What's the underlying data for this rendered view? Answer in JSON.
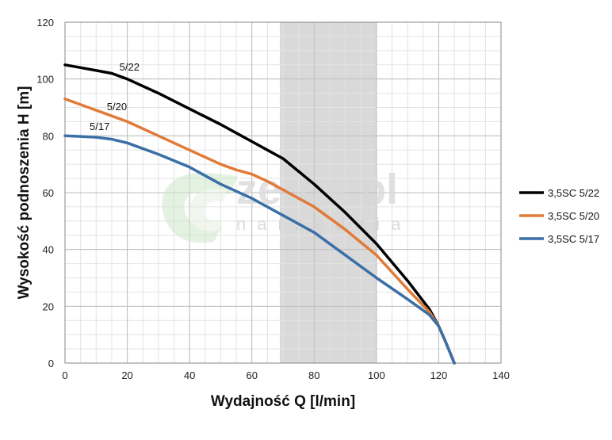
{
  "chart_data": {
    "type": "line",
    "xlabel": "Wydajność Q [l/min]",
    "ylabel": "Wysokość podnoszenia H [m]",
    "xlim": [
      0,
      140
    ],
    "ylim": [
      0,
      120
    ],
    "xticks": [
      0,
      20,
      40,
      60,
      80,
      100,
      120,
      140
    ],
    "yticks": [
      0,
      20,
      40,
      60,
      80,
      100,
      120
    ],
    "minor_x_step": 5,
    "minor_y_step": 5,
    "grid": true,
    "legend_position": "right",
    "shaded_x_range": [
      69,
      100
    ],
    "shaded_color": "#d9d9d9",
    "series": [
      {
        "name": "3,5SC 5/22",
        "label": "5/22",
        "color": "#000000",
        "x": [
          0,
          5,
          10,
          15,
          20,
          30,
          40,
          50,
          55,
          60,
          65,
          70,
          75,
          80,
          90,
          100,
          110,
          117,
          120,
          122,
          125
        ],
        "y": [
          105,
          104,
          103,
          102,
          100,
          95,
          89.5,
          84,
          81,
          78,
          75,
          72,
          67.5,
          63,
          53,
          42,
          29,
          19,
          13,
          8,
          0
        ]
      },
      {
        "name": "3,5SC 5/20",
        "label": "5/20",
        "color": "#e07b39",
        "x": [
          0,
          5,
          10,
          20,
          30,
          40,
          50,
          55,
          60,
          65,
          70,
          80,
          90,
          100,
          110,
          117,
          120,
          122,
          125
        ],
        "y": [
          93,
          91,
          89,
          85,
          80,
          75,
          70,
          68,
          66.5,
          64,
          61,
          55,
          47,
          38,
          26,
          18,
          13,
          8,
          0
        ]
      },
      {
        "name": "3,5SC 5/17",
        "label": "5/17",
        "color": "#3a6fa8",
        "x": [
          0,
          5,
          10,
          15,
          20,
          30,
          40,
          50,
          60,
          70,
          80,
          90,
          100,
          110,
          117,
          120,
          122,
          125
        ],
        "y": [
          80,
          79.8,
          79.5,
          78.8,
          77.5,
          73.5,
          69,
          63,
          58,
          52,
          46,
          38,
          30,
          22.5,
          17,
          13,
          8,
          0
        ]
      }
    ]
  },
  "watermark": {
    "main": "zerga.pl",
    "sub": "narzędzia"
  }
}
